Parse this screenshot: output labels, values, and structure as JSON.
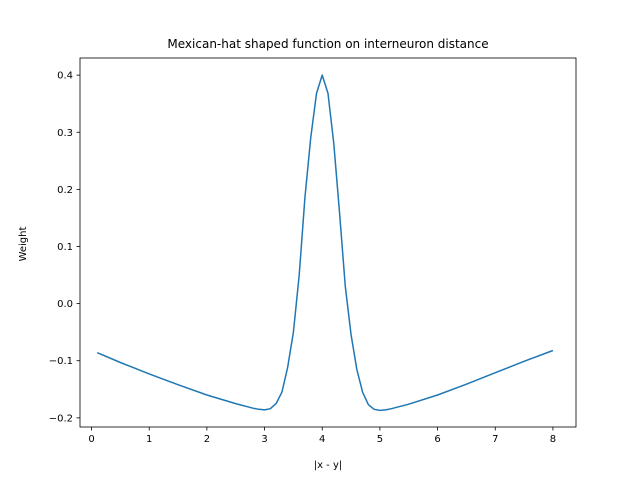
{
  "chart_data": {
    "type": "line",
    "title": "Mexican-hat shaped function on interneuron distance",
    "xlabel": "|x - y|",
    "ylabel": "Weight",
    "xlim": [
      -0.2,
      8.4
    ],
    "ylim": [
      -0.216,
      0.43
    ],
    "xticks": [
      0,
      1,
      2,
      3,
      4,
      5,
      6,
      7,
      8
    ],
    "yticks": [
      -0.2,
      -0.1,
      0.0,
      0.1,
      0.2,
      0.3,
      0.4
    ],
    "xtick_labels": [
      "0",
      "1",
      "2",
      "3",
      "4",
      "5",
      "6",
      "7",
      "8"
    ],
    "ytick_labels": [
      "−0.2",
      "−0.1",
      "0.0",
      "0.1",
      "0.2",
      "0.3",
      "0.4"
    ],
    "grid": false,
    "legend": "none",
    "series": [
      {
        "color": "#1f77b4",
        "x": [
          0.1,
          0.5,
          1.0,
          1.5,
          2.0,
          2.5,
          2.8,
          2.9,
          3.0,
          3.1,
          3.2,
          3.3,
          3.4,
          3.5,
          3.6,
          3.7,
          3.8,
          3.9,
          4.0,
          4.1,
          4.2,
          4.3,
          4.4,
          4.5,
          4.6,
          4.7,
          4.8,
          4.9,
          5.0,
          5.1,
          5.2,
          5.5,
          6.0,
          6.5,
          7.0,
          7.5,
          8.0
        ],
        "y": [
          -0.086,
          -0.103,
          -0.123,
          -0.142,
          -0.16,
          -0.175,
          -0.183,
          -0.185,
          -0.186,
          -0.184,
          -0.175,
          -0.155,
          -0.112,
          -0.05,
          0.05,
          0.185,
          0.29,
          0.368,
          0.4,
          0.368,
          0.28,
          0.16,
          0.03,
          -0.055,
          -0.115,
          -0.155,
          -0.177,
          -0.185,
          -0.187,
          -0.186,
          -0.184,
          -0.176,
          -0.16,
          -0.141,
          -0.121,
          -0.101,
          -0.082
        ]
      }
    ]
  }
}
